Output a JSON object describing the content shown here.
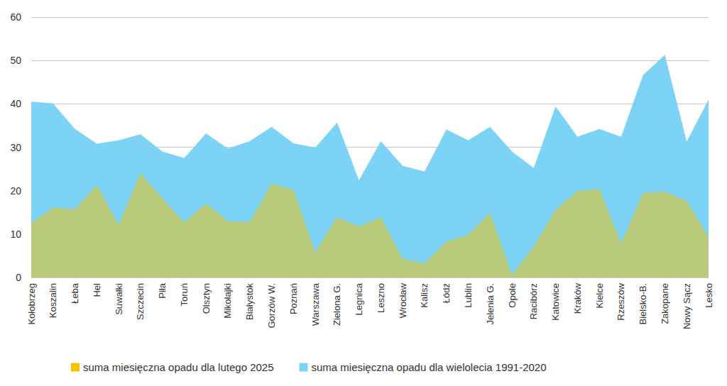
{
  "chart_data": {
    "type": "area",
    "categories": [
      "Kołobrzeg",
      "Koszalin",
      "Łeba",
      "Hel",
      "Suwałki",
      "Szczecin",
      "Piła",
      "Toruń",
      "Olsztyn",
      "Mikołajki",
      "Białystok",
      "Gorzów W.",
      "Poznań",
      "Warszawa",
      "Zielona G.",
      "Legnica",
      "Leszno",
      "Wrocław",
      "Kalisz",
      "Łódź",
      "Lublin",
      "Jelenia G.",
      "Opole",
      "Racibórz",
      "Katowice",
      "Kraków",
      "Kielce",
      "Rzeszów",
      "Bielsko-B.",
      "Zakopane",
      "Nowy Sącz",
      "Lesko"
    ],
    "series": [
      {
        "name": "suma miesięczna opadu dla lutego 2025",
        "color": "#f5c400",
        "values": [
          12.6,
          16.1,
          15.7,
          21.3,
          12.1,
          24.0,
          18.2,
          12.7,
          17.1,
          13.0,
          12.8,
          21.6,
          20.2,
          5.8,
          13.9,
          11.7,
          13.9,
          4.3,
          3.2,
          8.2,
          9.8,
          14.9,
          0.6,
          7.1,
          15.6,
          19.9,
          20.4,
          7.9,
          19.4,
          19.8,
          17.6,
          9.4
        ]
      },
      {
        "name": "suma miesięczna opadu dla wielolecia 1991-2020",
        "color": "#7dd3f5",
        "values": [
          40.5,
          40.1,
          34.2,
          30.8,
          31.6,
          33.0,
          29.0,
          27.5,
          33.2,
          29.7,
          31.4,
          34.7,
          30.9,
          29.9,
          35.7,
          22.4,
          31.4,
          25.7,
          24.4,
          34.1,
          31.6,
          34.7,
          29.0,
          25.2,
          39.4,
          32.4,
          34.2,
          32.4,
          46.6,
          51.3,
          31.3,
          41.0
        ]
      }
    ],
    "ylim": [
      0,
      60
    ],
    "yticks": [
      0,
      10,
      20,
      30,
      40,
      50,
      60
    ],
    "grid": true,
    "legend": "bottom"
  }
}
